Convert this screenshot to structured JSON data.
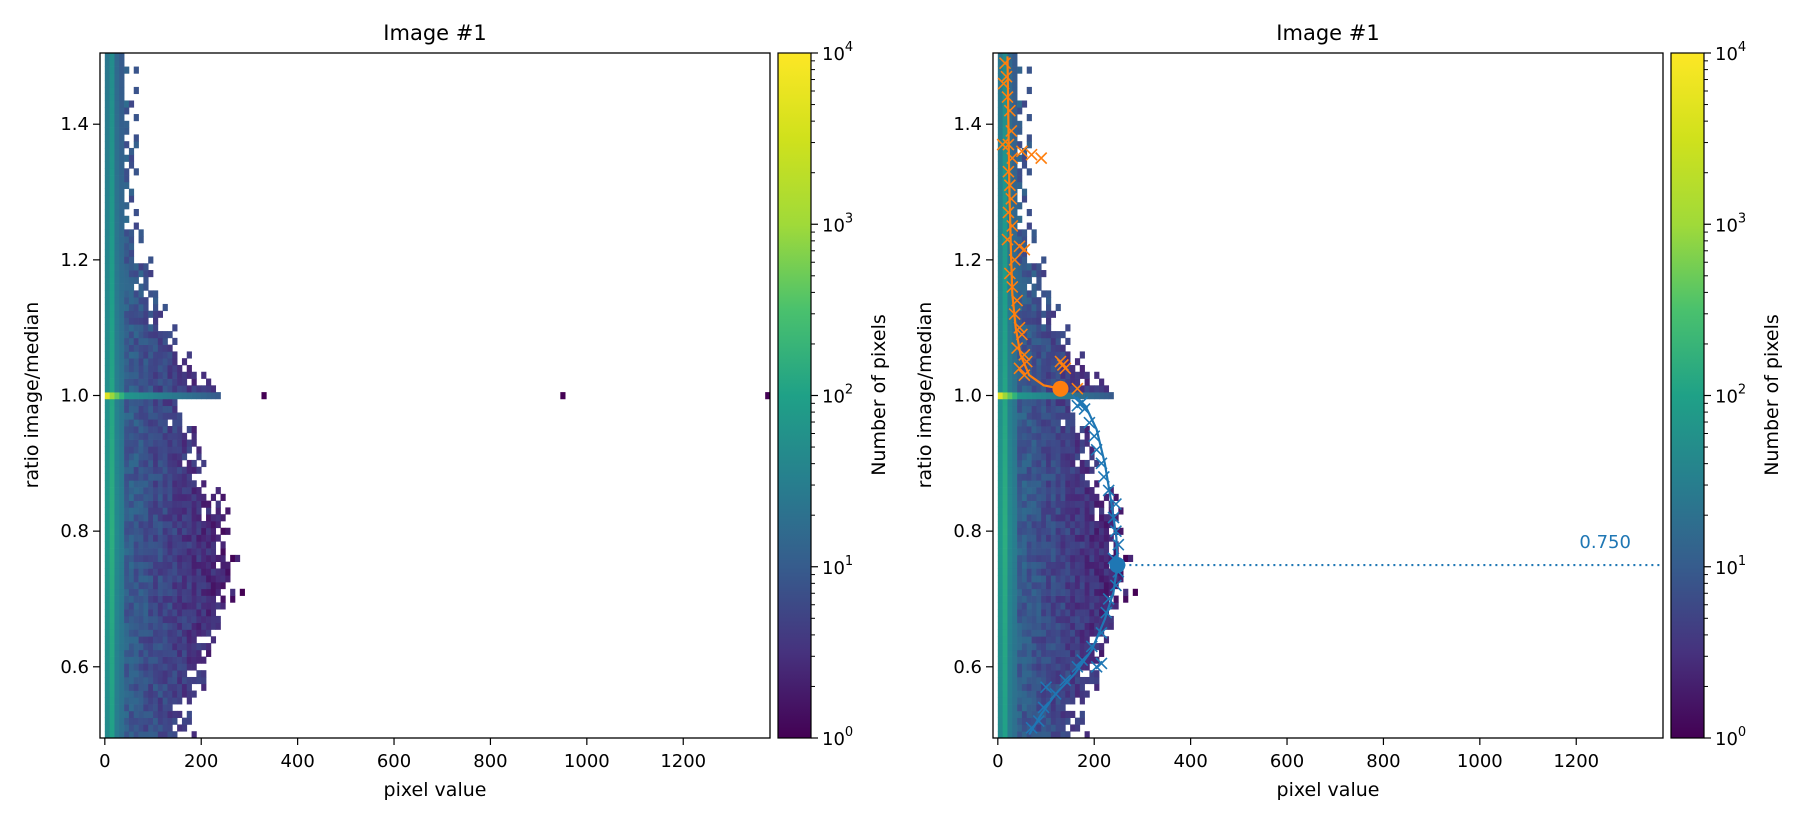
{
  "chart_data": [
    {
      "type": "heatmap",
      "title": "Image #1",
      "xlabel": "pixel value",
      "ylabel": "ratio image/median",
      "xlim": [
        -10,
        1380
      ],
      "ylim": [
        0.495,
        1.505
      ],
      "xticks": [
        0,
        200,
        400,
        600,
        800,
        1000,
        1200
      ],
      "yticks": [
        0.6,
        0.8,
        1.0,
        1.2,
        1.4
      ],
      "xtick_labels": [
        "0",
        "200",
        "400",
        "600",
        "800",
        "1000",
        "1200"
      ],
      "ytick_labels": [
        "0.6",
        "0.8",
        "1.0",
        "1.2",
        "1.4"
      ],
      "colorbar": {
        "label": "Number of pixels",
        "scale": "log",
        "range": [
          1,
          10000
        ],
        "colormap": "viridis",
        "ticks": [
          {
            "base": "10",
            "exp": "0"
          },
          {
            "base": "10",
            "exp": "1"
          },
          {
            "base": "10",
            "exp": "2"
          },
          {
            "base": "10",
            "exp": "3"
          },
          {
            "base": "10",
            "exp": "4"
          }
        ]
      },
      "ratio_one_row": {
        "y": 1.0,
        "peak_count": 10000
      },
      "outliers": [
        {
          "x": 330,
          "y": 1.0,
          "count": 1
        },
        {
          "x": 950,
          "y": 1.0,
          "count": 1
        },
        {
          "x": 1375,
          "y": 1.0,
          "count": 1
        }
      ]
    },
    {
      "type": "heatmap",
      "title": "Image #1",
      "xlabel": "pixel value",
      "ylabel": "ratio image/median",
      "xlim": [
        -10,
        1380
      ],
      "ylim": [
        0.495,
        1.505
      ],
      "xticks": [
        0,
        200,
        400,
        600,
        800,
        1000,
        1200
      ],
      "yticks": [
        0.6,
        0.8,
        1.0,
        1.2,
        1.4
      ],
      "xtick_labels": [
        "0",
        "200",
        "400",
        "600",
        "800",
        "1000",
        "1200"
      ],
      "ytick_labels": [
        "0.6",
        "0.8",
        "1.0",
        "1.2",
        "1.4"
      ],
      "colorbar": {
        "label": "Number of pixels",
        "scale": "log",
        "range": [
          1,
          10000
        ],
        "colormap": "viridis",
        "ticks": [
          {
            "base": "10",
            "exp": "0"
          },
          {
            "base": "10",
            "exp": "1"
          },
          {
            "base": "10",
            "exp": "2"
          },
          {
            "base": "10",
            "exp": "3"
          },
          {
            "base": "10",
            "exp": "4"
          }
        ]
      },
      "overlays": [
        {
          "color": "#ff7f0e",
          "fit_curve": [
            [
              20,
              1.5
            ],
            [
              22,
              1.4
            ],
            [
              24,
              1.3
            ],
            [
              27,
              1.22
            ],
            [
              30,
              1.15
            ],
            [
              37,
              1.1
            ],
            [
              47,
              1.06
            ],
            [
              65,
              1.03
            ],
            [
              95,
              1.015
            ],
            [
              130,
              1.01
            ]
          ],
          "markers": [
            [
              15,
              1.49
            ],
            [
              18,
              1.47
            ],
            [
              12,
              1.46
            ],
            [
              20,
              1.44
            ],
            [
              25,
              1.42
            ],
            [
              28,
              1.39
            ],
            [
              22,
              1.37
            ],
            [
              10,
              1.37
            ],
            [
              30,
              1.35
            ],
            [
              50,
              1.36
            ],
            [
              70,
              1.355
            ],
            [
              90,
              1.35
            ],
            [
              22,
              1.33
            ],
            [
              25,
              1.31
            ],
            [
              28,
              1.29
            ],
            [
              22,
              1.27
            ],
            [
              30,
              1.25
            ],
            [
              20,
              1.23
            ],
            [
              45,
              1.22
            ],
            [
              55,
              1.215
            ],
            [
              35,
              1.2
            ],
            [
              25,
              1.18
            ],
            [
              30,
              1.16
            ],
            [
              40,
              1.14
            ],
            [
              35,
              1.12
            ],
            [
              45,
              1.1
            ],
            [
              50,
              1.09
            ],
            [
              40,
              1.07
            ],
            [
              55,
              1.06
            ],
            [
              60,
              1.05
            ],
            [
              45,
              1.04
            ],
            [
              55,
              1.03
            ],
            [
              130,
              1.05
            ],
            [
              135,
              1.045
            ],
            [
              140,
              1.04
            ],
            [
              165,
              1.01
            ]
          ],
          "key_point": {
            "x": 130,
            "y": 1.01
          }
        },
        {
          "color": "#1f77b4",
          "fit_curve": [
            [
              65,
              0.5
            ],
            [
              90,
              0.53
            ],
            [
              120,
              0.56
            ],
            [
              160,
              0.59
            ],
            [
              195,
              0.625
            ],
            [
              222,
              0.67
            ],
            [
              240,
              0.71
            ],
            [
              248,
              0.75
            ],
            [
              246,
              0.79
            ],
            [
              236,
              0.84
            ],
            [
              222,
              0.9
            ],
            [
              205,
              0.95
            ],
            [
              185,
              0.98
            ],
            [
              155,
              1.0
            ]
          ],
          "markers": [
            [
              70,
              0.51
            ],
            [
              85,
              0.52
            ],
            [
              95,
              0.54
            ],
            [
              100,
              0.57
            ],
            [
              120,
              0.56
            ],
            [
              140,
              0.58
            ],
            [
              165,
              0.6
            ],
            [
              175,
              0.61
            ],
            [
              205,
              0.6
            ],
            [
              215,
              0.605
            ],
            [
              195,
              0.63
            ],
            [
              215,
              0.65
            ],
            [
              225,
              0.68
            ],
            [
              230,
              0.7
            ],
            [
              245,
              0.72
            ],
            [
              250,
              0.74
            ],
            [
              240,
              0.76
            ],
            [
              250,
              0.78
            ],
            [
              245,
              0.8
            ],
            [
              240,
              0.82
            ],
            [
              245,
              0.84
            ],
            [
              230,
              0.86
            ],
            [
              220,
              0.88
            ],
            [
              215,
              0.9
            ],
            [
              205,
              0.92
            ],
            [
              200,
              0.94
            ],
            [
              190,
              0.96
            ],
            [
              180,
              0.98
            ],
            [
              175,
              0.99
            ],
            [
              165,
              0.985
            ]
          ],
          "key_point": {
            "x": 248,
            "y": 0.75
          },
          "hline": {
            "y": 0.75,
            "label": "0.750"
          }
        }
      ]
    }
  ]
}
